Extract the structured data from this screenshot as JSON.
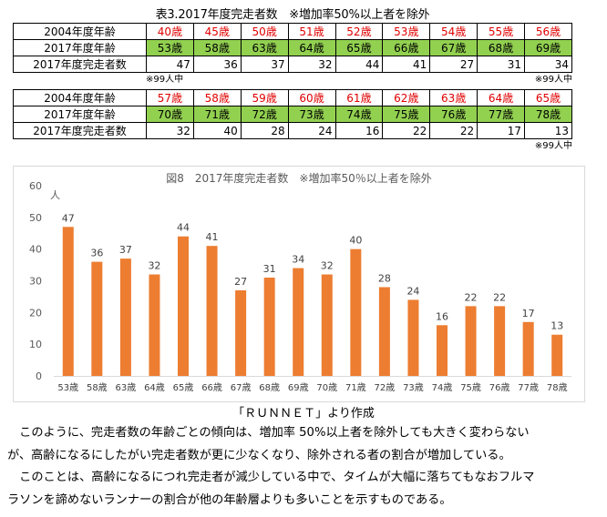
{
  "table": {
    "title": "表3.2017年度完走者数　※増加率50%以上者を除外",
    "row_headers": [
      "2004年度年齢",
      "2017年度年齢",
      "2017年度完走者数"
    ],
    "block1": {
      "age_2004": [
        "40歳",
        "45歳",
        "50歳",
        "51歳",
        "52歳",
        "53歳",
        "54歳",
        "55歳",
        "56歳"
      ],
      "age_2017": [
        "53歳",
        "58歳",
        "63歳",
        "64歳",
        "65歳",
        "66歳",
        "67歳",
        "68歳",
        "69歳"
      ],
      "finishers": [
        "47",
        "36",
        "37",
        "32",
        "44",
        "41",
        "27",
        "31",
        "34"
      ],
      "note_left": "※99人中",
      "note_right": "※99人中"
    },
    "block2": {
      "age_2004": [
        "57歳",
        "58歳",
        "59歳",
        "60歳",
        "61歳",
        "62歳",
        "63歳",
        "64歳",
        "65歳"
      ],
      "age_2017": [
        "70歳",
        "71歳",
        "72歳",
        "73歳",
        "74歳",
        "75歳",
        "76歳",
        "77歳",
        "78歳"
      ],
      "finishers": [
        "32",
        "40",
        "28",
        "24",
        "16",
        "22",
        "22",
        "17",
        "13"
      ],
      "note_right": "※99人中"
    }
  },
  "chart_data": {
    "type": "bar",
    "title": "図8　2017年度完走者数　※増加率50％以上者を除外",
    "unit": "人",
    "ylim": [
      0,
      60
    ],
    "yticks": [
      "0",
      "10",
      "20",
      "30",
      "40",
      "50",
      "60"
    ],
    "categories": [
      "53歳",
      "58歳",
      "63歳",
      "64歳",
      "65歳",
      "66歳",
      "67歳",
      "68歳",
      "69歳",
      "70歳",
      "71歳",
      "72歳",
      "73歳",
      "74歳",
      "75歳",
      "76歳",
      "77歳",
      "78歳"
    ],
    "values": [
      47,
      36,
      37,
      32,
      44,
      41,
      27,
      31,
      34,
      32,
      40,
      28,
      24,
      16,
      22,
      22,
      17,
      13
    ],
    "bar_color": "#ed7d31",
    "grid": false,
    "legend": "none"
  },
  "source": "「ＲＵＮＮＥＴ」より作成",
  "paragraphs": [
    "　このように、完走者数の年齢ごとの傾向は、増加率 50%以上者を除外しても大きく変わらない",
    "が、高齢になるにしたがい完走者数が更に少なくなり、除外される者の割合が増加している。",
    "　このことは、高齢になるにつれ完走者が減少している中で、タイムが大幅に落ちてもなおフルマ",
    "ラソンを諦めないランナーの割合が他の年齢層よりも多いことを示すものである。"
  ]
}
